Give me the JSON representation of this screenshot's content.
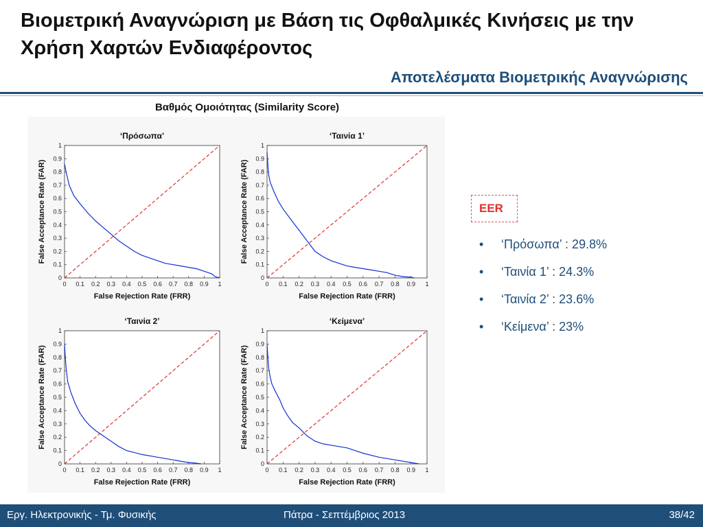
{
  "slide": {
    "title": "Βιομετρική Αναγνώριση με Βάση τις Οφθαλμικές Κινήσεις με την Χρήση Χαρτών Ενδιαφέροντος",
    "subtitle": "Αποτελέσματα Βιομετρικής Αναγνώρισης",
    "figure_title": "Βαθμός Ομοιότητας (Similarity Score)"
  },
  "eer": {
    "label": "EER",
    "items": [
      {
        "bullet": "•",
        "text": "‘Πρόσωπα’ : 29.8%"
      },
      {
        "bullet": "•",
        "text": "‘Ταινία 1’ : 24.3%"
      },
      {
        "bullet": "•",
        "text": "‘Ταινία 2’ : 23.6%"
      },
      {
        "bullet": "•",
        "text": "‘Κείμενα’ : 23%"
      }
    ]
  },
  "footer": {
    "left": "Εργ. Ηλεκτρονικής - Τμ. Φυσικής",
    "center": "Πάτρα - Σεπτέμβριος 2013",
    "right": "38/42"
  },
  "colors": {
    "accent": "#1f4e79",
    "curve": "#1030d0",
    "diagonal": "#e03030",
    "eer_label": "#e03030"
  },
  "chart_data": [
    {
      "type": "line",
      "title": "‘Πρόσωπα’",
      "xlabel": "False Rejection Rate (FRR)",
      "ylabel": "False Acceptance Rate (FAR)",
      "xlim": [
        0,
        1
      ],
      "ylim": [
        0,
        1
      ],
      "xticks": [
        "0",
        "0.1",
        "0.2",
        "0.3",
        "0.4",
        "0.5",
        "0.6",
        "0.7",
        "0.8",
        "0.9",
        "1"
      ],
      "yticks": [
        "0",
        "0.1",
        "0.2",
        "0.3",
        "0.4",
        "0.5",
        "0.6",
        "0.7",
        "0.8",
        "0.9",
        "1"
      ],
      "series": [
        {
          "x": [
            0,
            0.01,
            0.03,
            0.06,
            0.1,
            0.15,
            0.2,
            0.25,
            0.3,
            0.35,
            0.4,
            0.45,
            0.5,
            0.55,
            0.6,
            0.65,
            0.7,
            0.75,
            0.8,
            0.85,
            0.9,
            0.95,
            0.97,
            1.0
          ],
          "y": [
            0.86,
            0.8,
            0.7,
            0.62,
            0.56,
            0.49,
            0.43,
            0.38,
            0.33,
            0.28,
            0.24,
            0.2,
            0.17,
            0.15,
            0.13,
            0.11,
            0.1,
            0.09,
            0.08,
            0.07,
            0.05,
            0.03,
            0.01,
            0
          ]
        },
        {
          "x": [
            0,
            1
          ],
          "y": [
            0,
            1
          ],
          "style": "dashed"
        }
      ]
    },
    {
      "type": "line",
      "title": "‘Ταινία 1’",
      "xlabel": "False Rejection Rate (FRR)",
      "ylabel": "False Acceptance Rate (FAR)",
      "xlim": [
        0,
        1
      ],
      "ylim": [
        0,
        1
      ],
      "xticks": [
        "0",
        "0.1",
        "0.2",
        "0.3",
        "0.4",
        "0.5",
        "0.6",
        "0.7",
        "0.8",
        "0.9",
        "1"
      ],
      "yticks": [
        "0",
        "0.1",
        "0.2",
        "0.3",
        "0.4",
        "0.5",
        "0.6",
        "0.7",
        "0.8",
        "0.9",
        "1"
      ],
      "series": [
        {
          "x": [
            0,
            0.005,
            0.01,
            0.02,
            0.04,
            0.07,
            0.1,
            0.15,
            0.2,
            0.25,
            0.3,
            0.35,
            0.4,
            0.45,
            0.5,
            0.55,
            0.6,
            0.65,
            0.7,
            0.75,
            0.8,
            0.85,
            0.9,
            0.92
          ],
          "y": [
            0.95,
            0.85,
            0.78,
            0.72,
            0.66,
            0.58,
            0.52,
            0.44,
            0.36,
            0.28,
            0.2,
            0.16,
            0.13,
            0.11,
            0.09,
            0.08,
            0.07,
            0.06,
            0.05,
            0.04,
            0.02,
            0.01,
            0.005,
            0
          ]
        },
        {
          "x": [
            0,
            1
          ],
          "y": [
            0,
            1
          ],
          "style": "dashed"
        }
      ]
    },
    {
      "type": "line",
      "title": "‘Ταινία 2’",
      "xlabel": "False Rejection Rate (FRR)",
      "ylabel": "False Acceptance Rate (FAR)",
      "xlim": [
        0,
        1
      ],
      "ylim": [
        0,
        1
      ],
      "xticks": [
        "0",
        "0.1",
        "0.2",
        "0.3",
        "0.4",
        "0.5",
        "0.6",
        "0.7",
        "0.8",
        "0.9",
        "1"
      ],
      "yticks": [
        "0",
        "0.1",
        "0.2",
        "0.3",
        "0.4",
        "0.5",
        "0.6",
        "0.7",
        "0.8",
        "0.9",
        "1"
      ],
      "series": [
        {
          "x": [
            0,
            0.005,
            0.01,
            0.02,
            0.04,
            0.07,
            0.1,
            0.13,
            0.16,
            0.2,
            0.25,
            0.3,
            0.35,
            0.4,
            0.5,
            0.6,
            0.7,
            0.8,
            0.85,
            0.88
          ],
          "y": [
            0.9,
            0.8,
            0.72,
            0.62,
            0.54,
            0.45,
            0.38,
            0.33,
            0.29,
            0.25,
            0.21,
            0.17,
            0.13,
            0.1,
            0.07,
            0.05,
            0.03,
            0.01,
            0.005,
            0
          ]
        },
        {
          "x": [
            0,
            1
          ],
          "y": [
            0,
            1
          ],
          "style": "dashed"
        }
      ]
    },
    {
      "type": "line",
      "title": "‘Κείμενα’",
      "xlabel": "False Rejection Rate (FRR)",
      "ylabel": "False Acceptance Rate (FAR)",
      "xlim": [
        0,
        1
      ],
      "ylim": [
        0,
        1
      ],
      "xticks": [
        "0",
        "0.1",
        "0.2",
        "0.3",
        "0.4",
        "0.5",
        "0.6",
        "0.7",
        "0.8",
        "0.9",
        "1"
      ],
      "yticks": [
        "0",
        "0.1",
        "0.2",
        "0.3",
        "0.4",
        "0.5",
        "0.6",
        "0.7",
        "0.8",
        "0.9",
        "1"
      ],
      "series": [
        {
          "x": [
            0,
            0.005,
            0.01,
            0.02,
            0.03,
            0.05,
            0.08,
            0.1,
            0.13,
            0.16,
            0.2,
            0.25,
            0.3,
            0.35,
            0.4,
            0.45,
            0.5,
            0.55,
            0.6,
            0.7,
            0.8,
            0.9,
            0.95
          ],
          "y": [
            0.9,
            0.8,
            0.72,
            0.65,
            0.6,
            0.55,
            0.48,
            0.42,
            0.36,
            0.31,
            0.27,
            0.21,
            0.17,
            0.15,
            0.14,
            0.13,
            0.12,
            0.1,
            0.08,
            0.05,
            0.03,
            0.01,
            0
          ]
        },
        {
          "x": [
            0,
            1
          ],
          "y": [
            0,
            1
          ],
          "style": "dashed"
        }
      ]
    }
  ]
}
